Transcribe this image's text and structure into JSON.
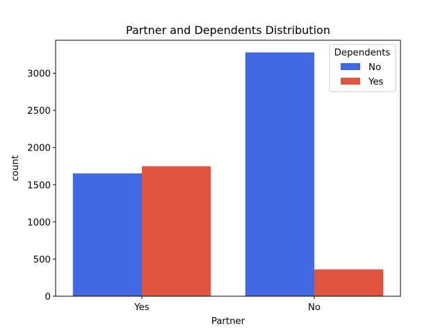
{
  "chart_data": {
    "type": "bar",
    "title": "Partner and Dependents Distribution",
    "xlabel": "Partner",
    "ylabel": "count",
    "categories": [
      "Yes",
      "No"
    ],
    "series": [
      {
        "name": "No",
        "values": [
          1653,
          3280
        ],
        "color": "#4169E1"
      },
      {
        "name": "Yes",
        "values": [
          1749,
          361
        ],
        "color": "#E0533F"
      }
    ],
    "ylim": [
      0,
      3444
    ],
    "yticks": [
      0,
      500,
      1000,
      1500,
      2000,
      2500,
      3000
    ],
    "legend": {
      "title": "Dependents",
      "placement": "top-right"
    },
    "grid": false
  }
}
